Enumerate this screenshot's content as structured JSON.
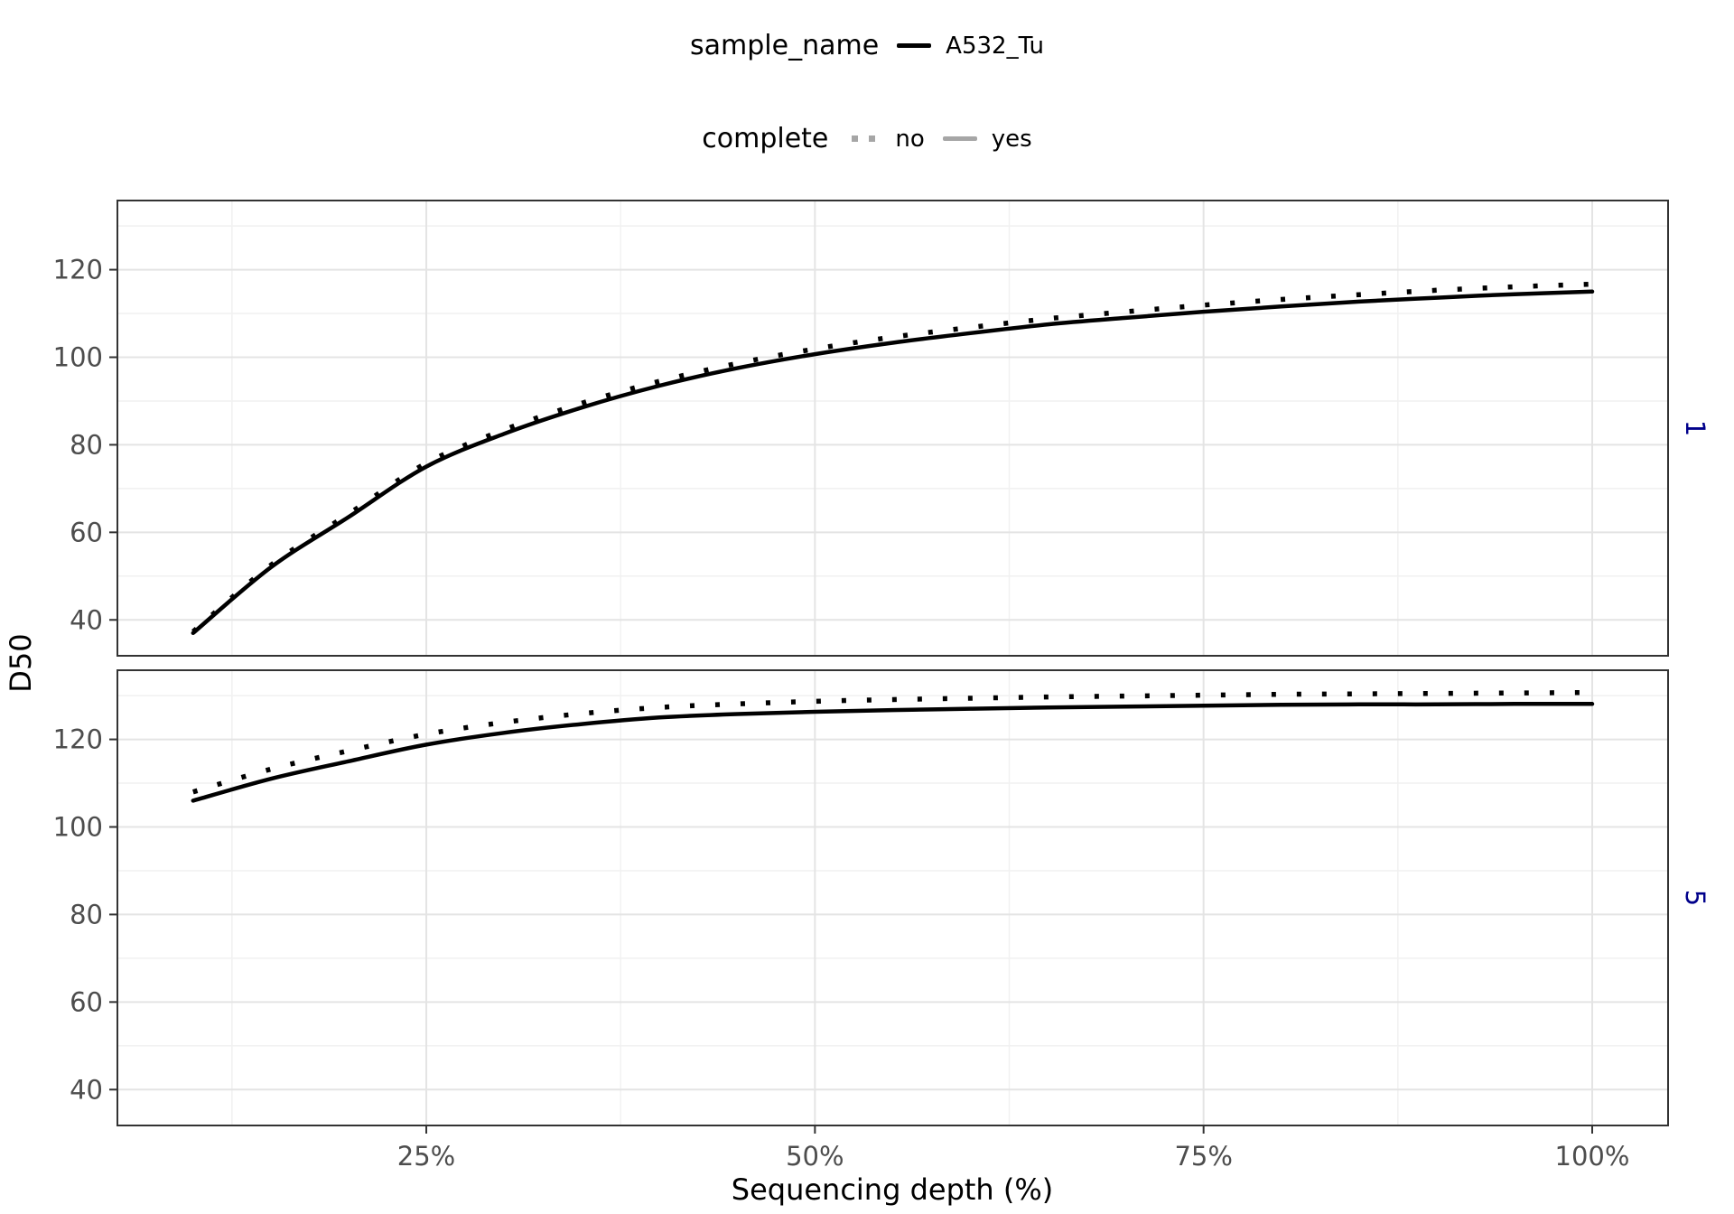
{
  "legends": {
    "sample": {
      "title": "sample_name",
      "items": [
        {
          "label": "A532_Tu",
          "line_style": "solid",
          "color": "#000000"
        }
      ]
    },
    "complete": {
      "title": "complete",
      "items": [
        {
          "label": "no",
          "line_style": "dotted",
          "color": "#a6a6a6"
        },
        {
          "label": "yes",
          "line_style": "solid",
          "color": "#a6a6a6"
        }
      ]
    }
  },
  "chart_data": {
    "type": "line",
    "title": "",
    "xlabel": "Sequencing depth (%)",
    "ylabel": "D50",
    "grid": "on",
    "legend_position": "top",
    "line_color": "#000000",
    "strip_text_color": "#00008b",
    "panel_border_color": "#333333",
    "major_grid_color": "#e4e4e4",
    "minor_grid_color": "#f1f1f1",
    "tick_text_color": "#4d4d4d",
    "x": [
      10,
      15,
      20,
      25,
      30,
      35,
      40,
      45,
      50,
      55,
      60,
      65,
      70,
      75,
      80,
      85,
      90,
      95,
      100
    ],
    "xlim": [
      5.13,
      104.88
    ],
    "ylim": [
      31.8,
      135.8
    ],
    "x_ticks": [
      {
        "value": 25,
        "label": "25%"
      },
      {
        "value": 50,
        "label": "50%"
      },
      {
        "value": 75,
        "label": "75%"
      },
      {
        "value": 100,
        "label": "100%"
      }
    ],
    "y_ticks": [
      40,
      60,
      80,
      100,
      120
    ],
    "x_minor": [
      12.5,
      37.5,
      62.5,
      87.5
    ],
    "y_minor": [
      50,
      70,
      90,
      110,
      130
    ],
    "facets": [
      {
        "label": "1",
        "series": [
          {
            "name": "A532_Tu (complete = no)",
            "style": "dotted",
            "values": [
              37.3,
              52.5,
              64.2,
              75.8,
              83.4,
              89.5,
              94.5,
              98.6,
              101.9,
              104.6,
              106.8,
              108.8,
              110.4,
              111.9,
              113.2,
              114.3,
              115.3,
              116.1,
              116.7
            ]
          },
          {
            "name": "A532_Tu (complete = yes)",
            "style": "solid",
            "values": [
              37,
              52,
              63.5,
              75,
              82.5,
              88.5,
              93.5,
              97.5,
              100.7,
              103.3,
              105.5,
              107.5,
              109,
              110.4,
              111.6,
              112.7,
              113.6,
              114.4,
              115
            ]
          }
        ]
      },
      {
        "label": "5",
        "series": [
          {
            "name": "A532_Tu (complete = no)",
            "style": "dotted",
            "values": [
              108,
              113.2,
              117.4,
              121.2,
              123.9,
              125.9,
              127.3,
              128.1,
              128.7,
              129.1,
              129.4,
              129.7,
              129.9,
              130.1,
              130.3,
              130.4,
              130.5,
              130.6,
              130.7
            ]
          },
          {
            "name": "A532_Tu (complete = yes)",
            "style": "solid",
            "values": [
              106,
              111,
              115,
              118.8,
              121.5,
              123.5,
              125,
              125.8,
              126.3,
              126.7,
              127,
              127.3,
              127.5,
              127.7,
              127.9,
              128,
              128,
              128.1,
              128.1
            ]
          }
        ]
      }
    ]
  }
}
